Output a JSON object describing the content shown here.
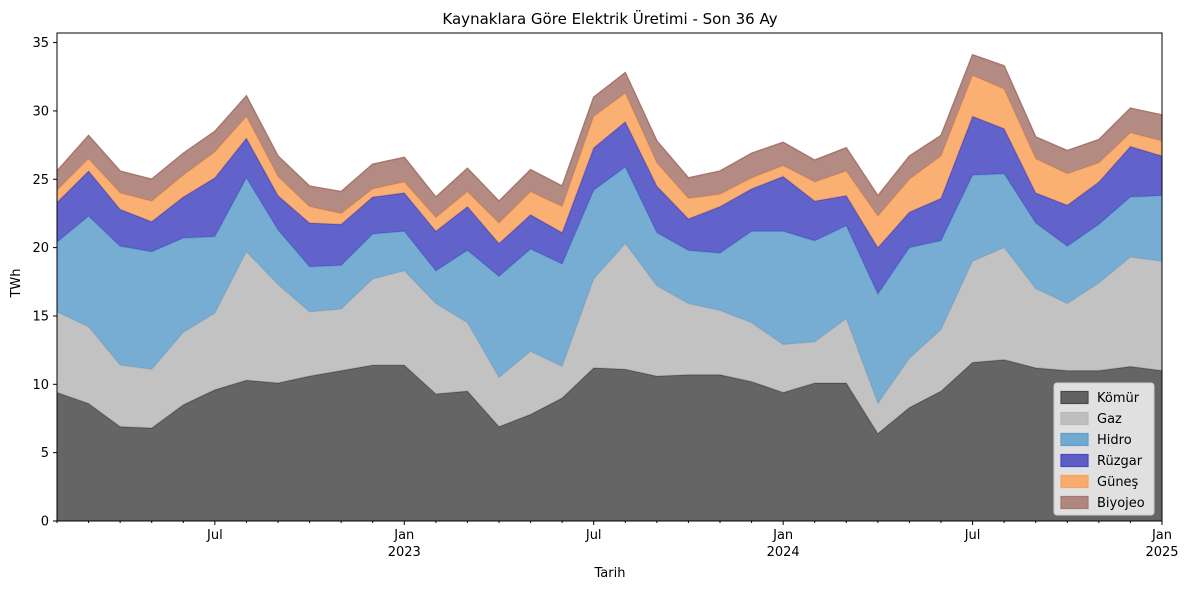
{
  "chart_data": {
    "type": "area",
    "stacked": true,
    "title": "Kaynaklara Göre Elektrik Üretimi - Son 36 Ay",
    "xlabel": "Tarih",
    "ylabel": "TWh",
    "ylim": [
      0,
      35.7
    ],
    "yticks": [
      0,
      5,
      10,
      15,
      20,
      25,
      30,
      35
    ],
    "x_ticks": [
      {
        "index": 5,
        "label": "Jul",
        "sublabel": ""
      },
      {
        "index": 11,
        "label": "Jan",
        "sublabel": "2023"
      },
      {
        "index": 17,
        "label": "Jul",
        "sublabel": ""
      },
      {
        "index": 23,
        "label": "Jan",
        "sublabel": "2024"
      },
      {
        "index": 29,
        "label": "Jul",
        "sublabel": ""
      },
      {
        "index": 35,
        "label": "Jan",
        "sublabel": "2025"
      }
    ],
    "x": [
      "2022-02",
      "2022-03",
      "2022-04",
      "2022-05",
      "2022-06",
      "2022-07",
      "2022-08",
      "2022-09",
      "2022-10",
      "2022-11",
      "2022-12",
      "2023-01",
      "2023-02",
      "2023-03",
      "2023-04",
      "2023-05",
      "2023-06",
      "2023-07",
      "2023-08",
      "2023-09",
      "2023-10",
      "2023-11",
      "2023-12",
      "2024-01",
      "2024-02",
      "2024-03",
      "2024-04",
      "2024-05",
      "2024-06",
      "2024-07",
      "2024-08",
      "2024-09",
      "2024-10",
      "2024-11",
      "2024-12",
      "2025-01"
    ],
    "legend_position": "lower-right",
    "series": [
      {
        "name": "Kömür",
        "color": "#4a4a4a",
        "values": [
          9.4,
          8.6,
          6.9,
          6.8,
          8.5,
          9.6,
          10.3,
          10.1,
          10.6,
          11.0,
          11.4,
          11.4,
          9.3,
          9.5,
          6.9,
          7.8,
          9.0,
          11.2,
          11.1,
          10.6,
          10.7,
          10.7,
          10.2,
          9.4,
          10.1,
          10.1,
          6.4,
          8.3,
          9.5,
          11.6,
          11.8,
          11.2,
          11.0,
          11.0,
          11.3,
          11.0
        ]
      },
      {
        "name": "Gaz",
        "color": "#b7b7b7",
        "values": [
          5.9,
          5.6,
          4.5,
          4.3,
          5.3,
          5.6,
          9.4,
          7.2,
          4.7,
          4.5,
          6.3,
          6.9,
          6.6,
          5.0,
          3.6,
          4.6,
          2.3,
          6.5,
          9.2,
          6.6,
          5.2,
          4.7,
          4.3,
          3.5,
          3.0,
          4.7,
          2.2,
          3.6,
          4.5,
          7.4,
          8.2,
          5.8,
          4.9,
          6.4,
          8.0,
          8.0
        ]
      },
      {
        "name": "Hidro",
        "color": "#5f9ecb",
        "values": [
          5.1,
          8.1,
          8.7,
          8.6,
          6.9,
          5.6,
          5.4,
          4.0,
          3.3,
          3.2,
          3.3,
          2.9,
          2.4,
          5.3,
          7.4,
          7.5,
          7.5,
          6.5,
          5.6,
          3.9,
          3.9,
          4.2,
          6.7,
          8.3,
          7.4,
          6.8,
          8.0,
          8.1,
          6.5,
          6.3,
          5.4,
          4.8,
          4.2,
          4.3,
          4.4,
          4.8
        ]
      },
      {
        "name": "Rüzgar",
        "color": "#4747c2",
        "values": [
          2.9,
          3.3,
          2.7,
          2.2,
          3.0,
          4.3,
          2.9,
          2.5,
          3.2,
          3.0,
          2.7,
          2.8,
          2.9,
          3.2,
          2.4,
          2.5,
          2.3,
          3.1,
          3.3,
          3.4,
          2.3,
          3.4,
          3.1,
          4.0,
          2.9,
          2.2,
          3.4,
          2.6,
          3.1,
          4.3,
          3.3,
          2.2,
          3.0,
          3.1,
          3.7,
          2.9
        ]
      },
      {
        "name": "Güneş",
        "color": "#f9a15b",
        "values": [
          0.9,
          0.9,
          1.2,
          1.5,
          1.6,
          1.9,
          1.6,
          1.4,
          1.2,
          0.8,
          0.6,
          0.8,
          1.0,
          1.1,
          1.5,
          1.7,
          1.9,
          2.3,
          2.1,
          1.7,
          1.5,
          0.9,
          0.8,
          0.8,
          1.4,
          1.8,
          2.3,
          2.4,
          3.1,
          3.0,
          2.9,
          2.5,
          2.3,
          1.4,
          1.0,
          1.1
        ]
      },
      {
        "name": "Biyojeo",
        "color": "#a7776d",
        "values": [
          1.4,
          1.7,
          1.6,
          1.6,
          1.6,
          1.5,
          1.5,
          1.5,
          1.5,
          1.6,
          1.8,
          1.8,
          1.5,
          1.7,
          1.6,
          1.6,
          1.5,
          1.4,
          1.5,
          1.6,
          1.5,
          1.7,
          1.8,
          1.7,
          1.6,
          1.7,
          1.5,
          1.7,
          1.5,
          1.5,
          1.7,
          1.6,
          1.7,
          1.7,
          1.8,
          1.9
        ]
      }
    ]
  }
}
